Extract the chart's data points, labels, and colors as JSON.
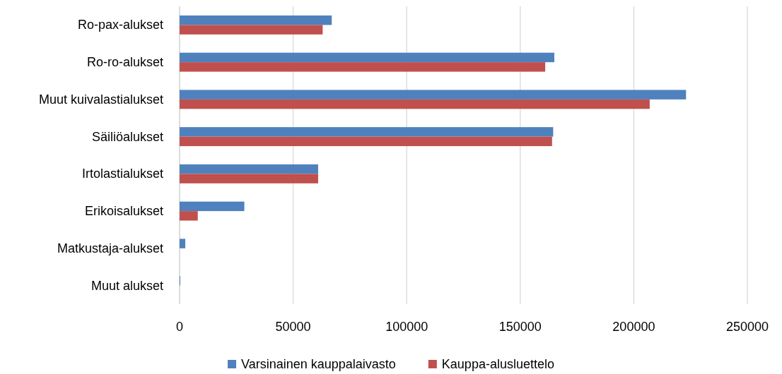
{
  "chart_data": {
    "type": "bar",
    "orientation": "horizontal",
    "categories": [
      "Ro-pax-alukset",
      "Ro-ro-alukset",
      "Muut kuivalastialukset",
      "Säiliöalukset",
      "Irtolastialukset",
      "Erikoisalukset",
      "Matkustaja-alukset",
      "Muut alukset"
    ],
    "series": [
      {
        "name": "Varsinainen kauppalaivasto",
        "color": "#4f81bd",
        "values": [
          67000,
          165000,
          223000,
          164500,
          61000,
          28500,
          2500,
          300
        ]
      },
      {
        "name": "Kauppa-alusluettelo",
        "color": "#c0504d",
        "values": [
          63000,
          161000,
          207000,
          164000,
          61000,
          8000,
          0,
          0
        ]
      }
    ],
    "xlim": [
      0,
      250000
    ],
    "xticks": [
      0,
      50000,
      100000,
      150000,
      200000,
      250000
    ],
    "grid": "x",
    "legend": "bottom"
  }
}
